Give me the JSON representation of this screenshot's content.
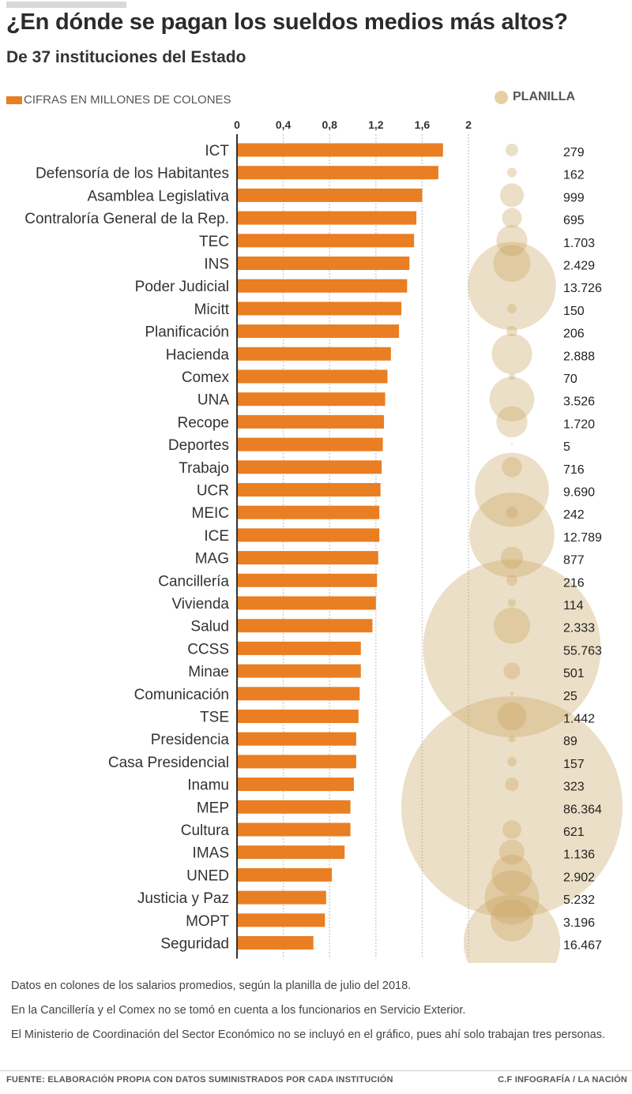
{
  "header": {
    "title": "¿En dónde se pagan los sueldos medios más altos?",
    "subtitle": "De 37 instituciones del Estado"
  },
  "legend": {
    "bar_label": "CIFRAS EN MILLONES DE COLONES",
    "bubble_label": "PLANILLA"
  },
  "colors": {
    "bar": "#e97e22",
    "bubble": "#c9a45e",
    "axis": "#333333",
    "grid": "#d0d0d0"
  },
  "chart_data": {
    "type": "bar",
    "orientation": "horizontal",
    "xlim": [
      0,
      2
    ],
    "x_ticks": [
      0,
      0.4,
      0.8,
      1.2,
      1.6,
      2
    ],
    "x_tick_labels": [
      "0",
      "0,4",
      "0,8",
      "1,2",
      "1,6",
      "2"
    ],
    "value_unit": "millones de colones",
    "categories": [
      "ICT",
      "Defensoría de los Habitantes",
      "Asamblea Legislativa",
      "Contraloría General de la Rep.",
      "TEC",
      "INS",
      "Poder Judicial",
      "Micitt",
      "Planificación",
      "Hacienda",
      "Comex",
      "UNA",
      "Recope",
      "Deportes",
      "Trabajo",
      "UCR",
      "MEIC",
      "ICE",
      "MAG",
      "Cancillería",
      "Vivienda",
      "Salud",
      "CCSS",
      "Minae",
      "Comunicación",
      "TSE",
      "Presidencia",
      "Casa Presidencial",
      "Inamu",
      "MEP",
      "Cultura",
      "IMAS",
      "UNED",
      "Justicia y Paz",
      "MOPT",
      "Seguridad"
    ],
    "values": [
      1.78,
      1.74,
      1.6,
      1.55,
      1.53,
      1.49,
      1.47,
      1.42,
      1.4,
      1.33,
      1.3,
      1.28,
      1.27,
      1.26,
      1.25,
      1.24,
      1.23,
      1.23,
      1.22,
      1.21,
      1.2,
      1.17,
      1.07,
      1.07,
      1.06,
      1.05,
      1.03,
      1.03,
      1.01,
      0.98,
      0.98,
      0.93,
      0.82,
      0.77,
      0.76,
      0.66
    ],
    "bubble_series": {
      "name": "Planilla",
      "values": [
        279,
        162,
        999,
        695,
        1703,
        2429,
        13726,
        150,
        206,
        2888,
        70,
        3526,
        1720,
        5,
        716,
        9690,
        242,
        12789,
        877,
        216,
        114,
        2333,
        55763,
        501,
        25,
        1442,
        89,
        157,
        323,
        86364,
        621,
        1136,
        2902,
        5232,
        3196,
        16467
      ],
      "labels": [
        "279",
        "162",
        "999",
        "695",
        "1.703",
        "2.429",
        "13.726",
        "150",
        "206",
        "2.888",
        "70",
        "3.526",
        "1.720",
        "5",
        "716",
        "9.690",
        "242",
        "12.789",
        "877",
        "216",
        "114",
        "2.333",
        "55.763",
        "501",
        "25",
        "1.442",
        "89",
        "157",
        "323",
        "86.364",
        "621",
        "1.136",
        "2.902",
        "5.232",
        "3.196",
        "16.467"
      ]
    }
  },
  "notes": [
    "Datos en colones de los salarios promedios, según  la planilla de julio del 2018.",
    "En la Cancillería y el Comex no se tomó en cuenta a los funcionarios en Servicio Exterior.",
    "El Ministerio de Coordinación del Sector Económico no se incluyó en el gráfico, pues ahí solo trabajan tres personas."
  ],
  "footer": {
    "source": "FUENTE: ELABORACIÓN PROPIA CON DATOS SUMINISTRADOS POR CADA INSTITUCIÓN",
    "credit": "C.F INFOGRAFÍA / LA NACIÓN"
  }
}
